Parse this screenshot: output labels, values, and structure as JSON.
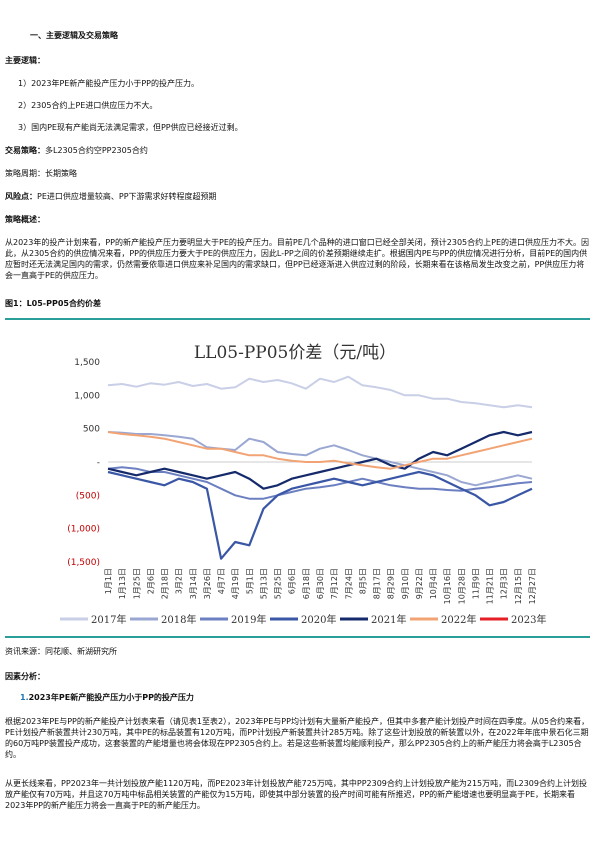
{
  "section1_title": "一、主要逻辑及交易策略",
  "main_logic_label": "主要逻辑：",
  "logic_items": [
    "1）2023年PE新产能投产压力小于PP的投产压力。",
    "2）2305合约上PE进口供应压力不大。",
    "3）国内PE现有产能尚无法满足需求，但PP供应已经接近过剩。"
  ],
  "strategy_label": "交易策略：",
  "strategy_value": "多L2305合约空PP2305合约",
  "period_text": "策略周期：长期策略",
  "risk_label": "风险点：",
  "risk_value": "PE进口供应增量较高、PP下游需求好转程度超预期",
  "overview_label": "策略概述：",
  "overview_text": "从2023年的投产计划来看，PP的新产能投产压力要明显大于PE的投产压力。目前PE几个品种的进口窗口已经全部关闭，预计2305合约上PE的进口供应压力不大。因此，从2305合约的供应情况来看，PP的供应压力要大于PE的供应压力，因此L-PP之间的价差预期继续走扩。根据国内PE与PP的供应情况进行分析，目前PE的国内供应暂时还无法满足国内的需求，仍然需要依靠进口供应来补足国内的需求缺口，但PP已经逐渐进入供应过剩的阶段，长期来看在该格局发生改变之前，PP供应压力将会一直高于PE的供应压力。",
  "figure_caption": "图1：L05-PP05合约价差",
  "source_text": "资讯来源：同花顺、新湖研究所",
  "cause_label": "因素分析：",
  "cause_item_number": "1.",
  "cause_item_title": "2023年PE新产能投产压力小于PP的投产压力",
  "cause_para1": "根据2023年PE与PP的新产能投产计划表来看（请见表1至表2），2023年PE与PP均计划有大量新产能投产，但其中多套产能计划投产时间在四季度。从05合约来看，PE计划投产新装置共计230万吨，其中PE的标品装置有120万吨，而PP计划投产新装置共计285万吨。除了这些计划投放的新装置以外，在2022年年底中景石化三期的60万吨PP装置投产成功，这套装置的产能增量也将会体现在PP2305合约上。若是这些新装置均能顺利投产，那么PP2305合约上的新产能压力将会高于L2305合约。",
  "cause_para2": "从更长线来看，PP2023年一共计划投放产能1120万吨，而PE2023年计划投放产能725万吨，其中PP2309合约上计划投放产能为215万吨，而L2309合约上计划投放产能仅有70万吨，并且这70万吨中标品相关装置的产能仅为15万吨，即使其中部分装置的投产时间可能有所推迟，PP的新产能增速也要明显高于PE，长期来看2023年PP的新产能压力将会一直高于PE的新产能压力。",
  "chart_data": {
    "type": "line",
    "title": "LL05-PP05价差（元/吨）",
    "y_tick_labels": [
      "1,500",
      "1,000",
      "500",
      "-",
      "(500)",
      "(1,000)",
      "(1,500)"
    ],
    "y_tick_values": [
      1500,
      1000,
      500,
      0,
      -500,
      -1000,
      -1500
    ],
    "ylim": [
      -1500,
      1500
    ],
    "x_tick_labels": [
      "1月1日",
      "1月13日",
      "1月25日",
      "2月6日",
      "2月18日",
      "3月2日",
      "3月14日",
      "3月26日",
      "4月7日",
      "4月19日",
      "5月1日",
      "5月13日",
      "5月25日",
      "6月6日",
      "6月18日",
      "6月30日",
      "7月12日",
      "7月24日",
      "8月5日",
      "8月17日",
      "8月29日",
      "9月10日",
      "9月22日",
      "10月4日",
      "10月16日",
      "10月28日",
      "11月9日",
      "11月21日",
      "12月3日",
      "12月15日",
      "12月27日"
    ],
    "legend_position": "bottom",
    "series": [
      {
        "name": "2017年",
        "color": "#c9cfe6",
        "values": [
          1150,
          1170,
          1130,
          1180,
          1160,
          1200,
          1140,
          1170,
          1100,
          1120,
          1250,
          1200,
          1230,
          1180,
          1100,
          1250,
          1200,
          1280,
          1150,
          1120,
          1080,
          1000,
          1000,
          950,
          950,
          900,
          880,
          850,
          820,
          850,
          820
        ]
      },
      {
        "name": "2018年",
        "color": "#99a7d2",
        "values": [
          450,
          440,
          420,
          420,
          400,
          380,
          350,
          220,
          200,
          180,
          350,
          300,
          150,
          120,
          100,
          200,
          250,
          180,
          100,
          50,
          0,
          -50,
          -100,
          -150,
          -200,
          -300,
          -350,
          -300,
          -250,
          -200,
          -250
        ]
      },
      {
        "name": "2019年",
        "color": "#6b7fc1",
        "values": [
          -100,
          -80,
          -100,
          -150,
          -150,
          -200,
          -250,
          -300,
          -400,
          -500,
          -550,
          -550,
          -500,
          -450,
          -400,
          -380,
          -350,
          -300,
          -250,
          -300,
          -350,
          -380,
          -400,
          -400,
          -420,
          -430,
          -400,
          -380,
          -350,
          -320,
          -300
        ]
      },
      {
        "name": "2020年",
        "color": "#3a57a6",
        "values": [
          -150,
          -200,
          -250,
          -300,
          -350,
          -250,
          -300,
          -400,
          -1450,
          -1200,
          -1250,
          -700,
          -500,
          -400,
          -350,
          -300,
          -250,
          -300,
          -350,
          -300,
          -250,
          -200,
          -150,
          -200,
          -300,
          -400,
          -500,
          -650,
          -600,
          -500,
          -400
        ]
      },
      {
        "name": "2021年",
        "color": "#142a6b",
        "values": [
          -100,
          -150,
          -200,
          -150,
          -100,
          -150,
          -200,
          -250,
          -200,
          -150,
          -250,
          -400,
          -350,
          -250,
          -200,
          -150,
          -100,
          -50,
          0,
          50,
          -50,
          -100,
          50,
          150,
          100,
          200,
          300,
          400,
          450,
          400,
          450
        ]
      },
      {
        "name": "2022年",
        "color": "#f2a374",
        "values": [
          450,
          420,
          400,
          380,
          350,
          300,
          250,
          200,
          200,
          150,
          100,
          100,
          50,
          20,
          0,
          0,
          20,
          -20,
          -50,
          -80,
          -100,
          -50,
          0,
          50,
          50,
          100,
          150,
          200,
          250,
          300,
          350
        ]
      },
      {
        "name": "2023年",
        "color": "#e61e26",
        "values": []
      }
    ]
  },
  "page_colors": {
    "accent_rule": "#2a9f9a",
    "cause_number": "#1f77b4",
    "negative_red": "#c00000"
  }
}
